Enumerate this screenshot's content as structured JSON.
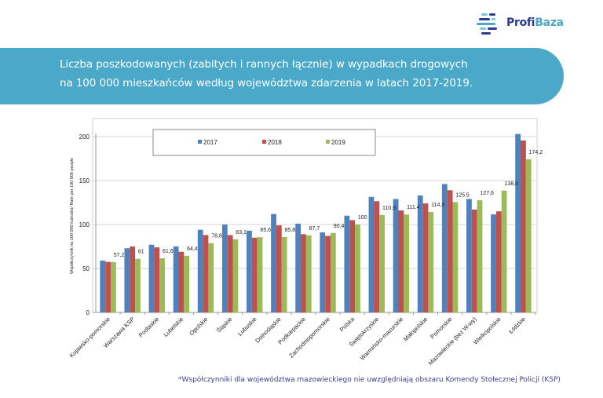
{
  "logo": {
    "text_a": "Profi",
    "text_b": "Baza"
  },
  "banner": {
    "line1": "Liczba poszkodowanych (zabitych i rannych łącznie) w wypadkach drogowych",
    "line2": "na 100 000 mieszkańców według województwa zdarzenia w latach 2017-2019."
  },
  "footnote": "*Współczynniki dla województwa mazowieckiego nie uwzględniają obszaru Komendy Stołecznej Policji (KSP)",
  "colors": {
    "2017": "#4f81bd",
    "2018": "#c0504d",
    "2019": "#9bbb59",
    "banner": "#4aa8c8"
  },
  "chart_data": {
    "type": "bar",
    "title": "",
    "xlabel": "",
    "ylabel": "Współczynnik na 100 000 ludności/ Rate per 100 000 people",
    "ylim": [
      0,
      200
    ],
    "yticks": [
      "0",
      "50",
      "100",
      "150",
      "200"
    ],
    "grid": true,
    "legend_position": "top",
    "categories": [
      "Kujawsko-pomorskie",
      "Warszawa KSP",
      "Podlaskie",
      "Lubelskie",
      "Opolskie",
      "Śląskie",
      "Lubuskie",
      "Dolnośląskie",
      "Podkarpackie",
      "Zachodniopomorskie",
      "Polska",
      "Świętokrzyskie",
      "Warmińsko-mazurskie",
      "Małopolskie",
      "Pomorskie",
      "Mazowieckie (bez W-wy)",
      "Wielkopolskie",
      "Łódzkie"
    ],
    "series": [
      {
        "name": "2017",
        "values": [
          59,
          73,
          77,
          75,
          94,
          100,
          93,
          112,
          101,
          91,
          110,
          131.5,
          129,
          133,
          146,
          129,
          111.5,
          203
        ]
      },
      {
        "name": "2018",
        "values": [
          57.5,
          75,
          74,
          69,
          88,
          88,
          85,
          99,
          89,
          87,
          105,
          126.5,
          116,
          124,
          139,
          117,
          115,
          195.5
        ]
      },
      {
        "name": "2019",
        "values": [
          57.2,
          61,
          61.6,
          64.4,
          78.8,
          83.1,
          85.6,
          85.8,
          87.7,
          90.4,
          100,
          110.9,
          111.4,
          114.3,
          125.5,
          127.6,
          138.6,
          174.2
        ]
      }
    ],
    "data_labels": [
      "57,2",
      "61",
      "61,6",
      "64,4",
      "78,8",
      "83,1",
      "85,6",
      "85,8",
      "87,7",
      "90,4",
      "100",
      "110,9",
      "111,4",
      "114,3",
      "125,5",
      "127,6",
      "138,6",
      "174,2"
    ]
  }
}
